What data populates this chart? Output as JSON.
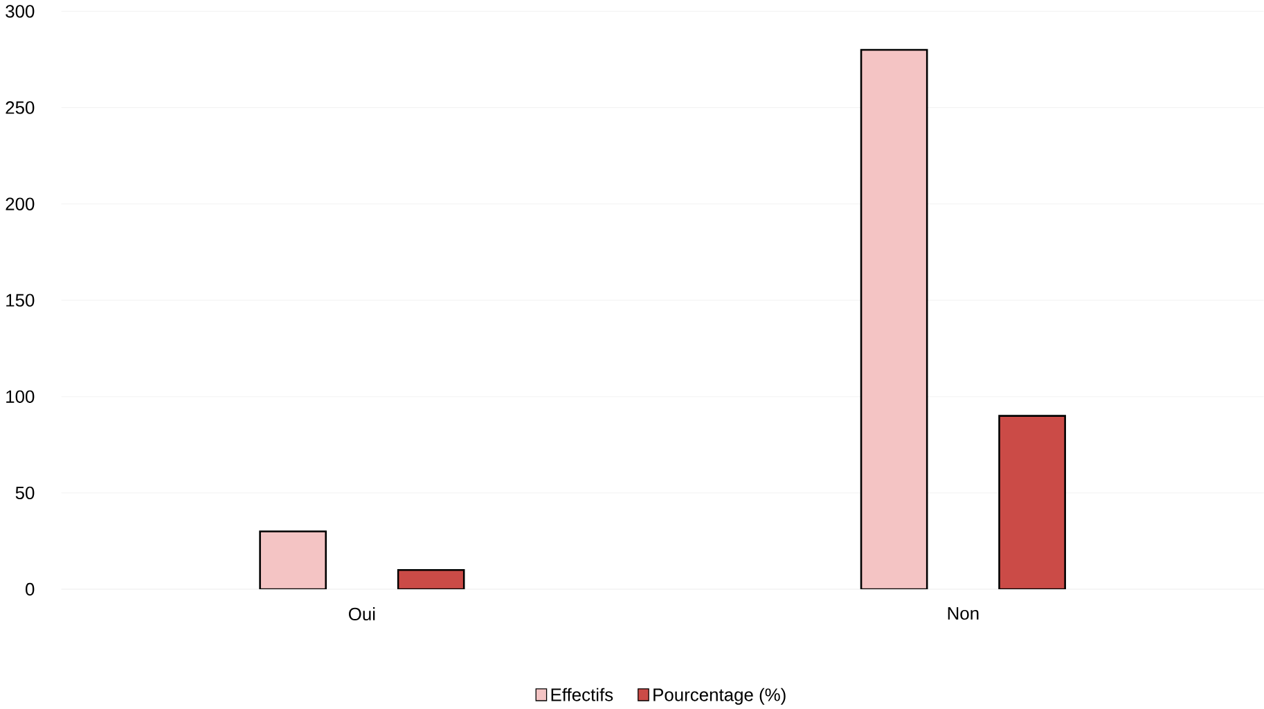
{
  "chart_data": {
    "type": "bar",
    "categories": [
      "Oui",
      "Non"
    ],
    "series": [
      {
        "name": "Effectifs",
        "color": "#f4c4c4",
        "values": [
          30,
          280
        ]
      },
      {
        "name": "Pourcentage (%)",
        "color": "#cb4b47",
        "values": [
          10,
          90
        ]
      }
    ],
    "ylim": [
      0,
      300
    ],
    "yticks": [
      0,
      50,
      100,
      150,
      200,
      250,
      300
    ],
    "grid": "y",
    "legend": "bottom"
  }
}
